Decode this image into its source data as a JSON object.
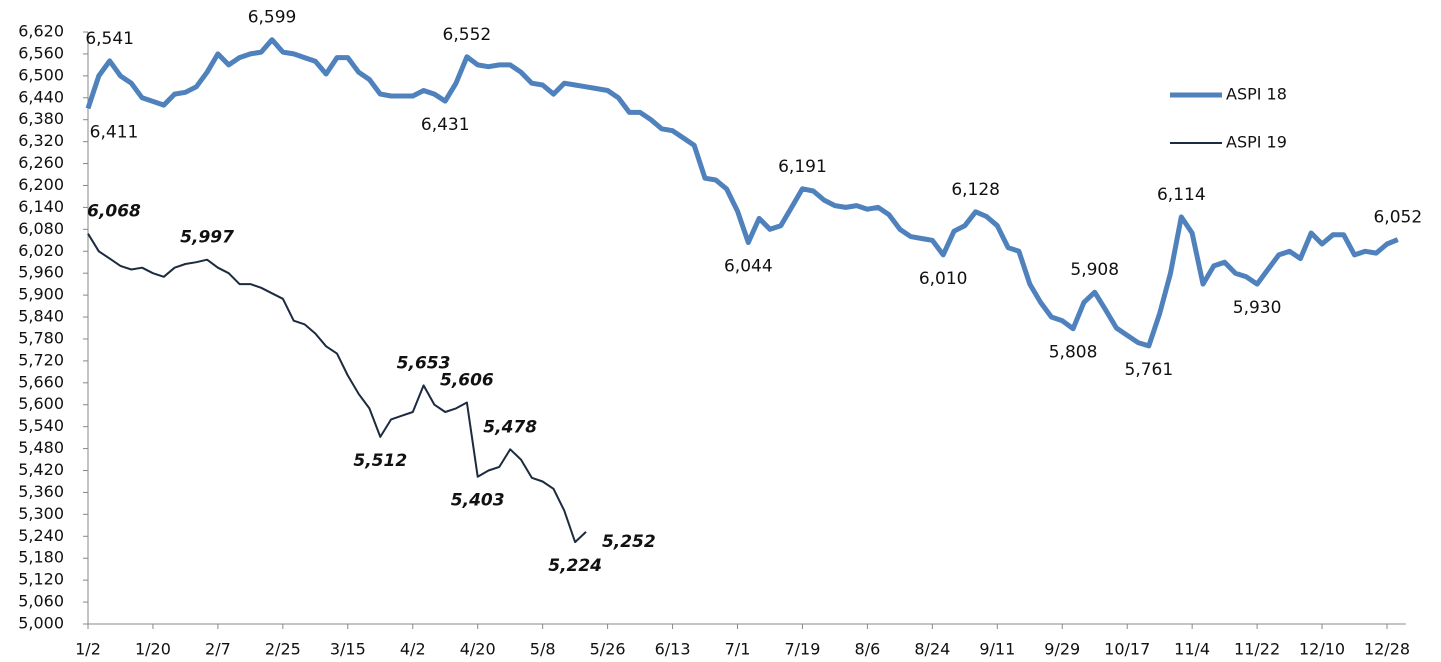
{
  "chart_data": {
    "type": "line",
    "categories": [
      "1/2",
      null,
      null,
      null,
      null,
      null,
      "1/20",
      null,
      null,
      null,
      null,
      null,
      "2/7",
      null,
      null,
      null,
      null,
      null,
      "2/25",
      null,
      null,
      null,
      null,
      null,
      "3/15",
      null,
      null,
      null,
      null,
      null,
      "4/2",
      null,
      null,
      null,
      null,
      null,
      "4/20",
      null,
      null,
      null,
      null,
      null,
      "5/8",
      null,
      null,
      null,
      null,
      null,
      "5/26",
      null,
      null,
      null,
      null,
      null,
      "6/13",
      null,
      null,
      null,
      null,
      null,
      "7/1",
      null,
      null,
      null,
      null,
      null,
      "7/19",
      null,
      null,
      null,
      null,
      null,
      "8/6",
      null,
      null,
      null,
      null,
      null,
      "8/24",
      null,
      null,
      null,
      null,
      null,
      "9/11",
      null,
      null,
      null,
      null,
      null,
      "9/29",
      null,
      null,
      null,
      null,
      null,
      "10/17",
      null,
      null,
      null,
      null,
      null,
      "11/4",
      null,
      null,
      null,
      null,
      null,
      "11/22",
      null,
      null,
      null,
      null,
      null,
      "12/10",
      null,
      null,
      null,
      null,
      null,
      "12/28",
      null
    ],
    "series": [
      {
        "name": "ASPI 18",
        "color": "#4f81bd",
        "width": 5,
        "values": [
          6411,
          6500,
          6541,
          6500,
          6480,
          6440,
          6430,
          6420,
          6450,
          6455,
          6470,
          6510,
          6560,
          6530,
          6550,
          6560,
          6565,
          6599,
          6565,
          6560,
          6550,
          6540,
          6505,
          6550,
          6550,
          6510,
          6490,
          6450,
          6445,
          6445,
          6445,
          6460,
          6450,
          6431,
          6480,
          6552,
          6530,
          6525,
          6530,
          6530,
          6510,
          6480,
          6475,
          6450,
          6480,
          6475,
          6470,
          6465,
          6460,
          6440,
          6400,
          6400,
          6380,
          6355,
          6350,
          6330,
          6310,
          6220,
          6215,
          6190,
          6130,
          6044,
          6110,
          6080,
          6090,
          6140,
          6191,
          6185,
          6160,
          6145,
          6140,
          6145,
          6135,
          6140,
          6120,
          6080,
          6060,
          6055,
          6050,
          6010,
          6075,
          6090,
          6128,
          6115,
          6090,
          6030,
          6020,
          5930,
          5880,
          5840,
          5830,
          5808,
          5880,
          5908,
          5860,
          5810,
          5790,
          5770,
          5761,
          5850,
          5960,
          6114,
          6070,
          5930,
          5980,
          5990,
          5960,
          5950,
          5930,
          5970,
          6010,
          6020,
          6000,
          6070,
          6040,
          6065,
          6065,
          6010,
          6020,
          6015,
          6040,
          6052
        ],
        "value_labels": [
          "6,411",
          null,
          "6,541",
          null,
          null,
          null,
          null,
          null,
          null,
          null,
          null,
          null,
          null,
          null,
          null,
          null,
          null,
          "6,599",
          null,
          null,
          null,
          null,
          null,
          null,
          null,
          null,
          null,
          null,
          null,
          null,
          null,
          null,
          null,
          "6,431",
          null,
          "6,552",
          null,
          null,
          null,
          null,
          null,
          null,
          null,
          null,
          null,
          null,
          null,
          null,
          null,
          null,
          null,
          null,
          null,
          null,
          null,
          null,
          null,
          null,
          null,
          null,
          null,
          "6,044",
          null,
          null,
          null,
          null,
          "6,191",
          null,
          null,
          null,
          null,
          null,
          null,
          null,
          null,
          null,
          null,
          null,
          null,
          "6,010",
          null,
          null,
          "6,128",
          null,
          null,
          null,
          null,
          null,
          null,
          null,
          null,
          "5,808",
          null,
          "5,908",
          null,
          null,
          null,
          null,
          "5,761",
          null,
          null,
          "6,114",
          null,
          null,
          null,
          null,
          null,
          null,
          "5,930",
          null,
          null,
          null,
          null,
          null,
          null,
          null,
          null,
          null,
          null,
          null,
          null,
          "6,052"
        ]
      },
      {
        "name": "ASPI 19",
        "color": "#1c2b3f",
        "width": 2,
        "label_style": "bold-italic",
        "values": [
          6068,
          6020,
          6000,
          5980,
          5970,
          5975,
          5960,
          5950,
          5975,
          5985,
          5990,
          5997,
          5975,
          5960,
          5930,
          5930,
          5920,
          5905,
          5890,
          5830,
          5820,
          5795,
          5760,
          5740,
          5680,
          5630,
          5590,
          5512,
          5560,
          5570,
          5580,
          5653,
          5600,
          5580,
          5590,
          5606,
          5403,
          5420,
          5430,
          5478,
          5450,
          5400,
          5390,
          5370,
          5310,
          5224,
          5252,
          null,
          null,
          null,
          null,
          null,
          null,
          null,
          null,
          null,
          null,
          null,
          null,
          null,
          null,
          null,
          null,
          null,
          null,
          null,
          null,
          null,
          null,
          null,
          null,
          null,
          null,
          null,
          null,
          null,
          null,
          null,
          null,
          null,
          null,
          null,
          null,
          null,
          null,
          null,
          null,
          null,
          null,
          null,
          null,
          null,
          null,
          null,
          null,
          null,
          null,
          null,
          null,
          null,
          null,
          null,
          null,
          null,
          null,
          null,
          null,
          null,
          null,
          null,
          null,
          null,
          null,
          null,
          null,
          null,
          null,
          null,
          null,
          null,
          null,
          null
        ],
        "value_labels": [
          "6,068",
          null,
          null,
          null,
          null,
          null,
          null,
          null,
          null,
          null,
          null,
          "5,997",
          null,
          null,
          null,
          null,
          null,
          null,
          null,
          null,
          null,
          null,
          null,
          null,
          null,
          null,
          null,
          "5,512",
          null,
          null,
          null,
          "5,653",
          null,
          null,
          null,
          "5,606",
          "5,403",
          null,
          null,
          "5,478",
          null,
          null,
          null,
          null,
          null,
          "5,224",
          "5,252",
          null,
          null,
          null,
          null,
          null,
          null,
          null,
          null,
          null,
          null,
          null,
          null,
          null,
          null,
          null,
          null,
          null,
          null,
          null,
          null,
          null,
          null,
          null,
          null,
          null,
          null,
          null,
          null,
          null,
          null,
          null,
          null,
          null,
          null,
          null,
          null,
          null,
          null,
          null,
          null,
          null,
          null,
          null,
          null,
          null,
          null,
          null,
          null,
          null,
          null,
          null,
          null,
          null,
          null,
          null,
          null,
          null,
          null,
          null,
          null,
          null,
          null,
          null,
          null,
          null,
          null,
          null,
          null,
          null,
          null,
          null,
          null,
          null,
          null,
          null
        ]
      }
    ],
    "ylim": [
      5000,
      6620
    ],
    "yticks": [
      {
        "value": 5000,
        "label": "5,000"
      },
      {
        "value": 5060,
        "label": "5,060"
      },
      {
        "value": 5120,
        "label": "5,120"
      },
      {
        "value": 5180,
        "label": "5,180"
      },
      {
        "value": 5240,
        "label": "5,240"
      },
      {
        "value": 5300,
        "label": "5,300"
      },
      {
        "value": 5360,
        "label": "5,360"
      },
      {
        "value": 5420,
        "label": "5,420"
      },
      {
        "value": 5480,
        "label": "5,480"
      },
      {
        "value": 5540,
        "label": "5,540"
      },
      {
        "value": 5600,
        "label": "5,600"
      },
      {
        "value": 5660,
        "label": "5,660"
      },
      {
        "value": 5720,
        "label": "5,720"
      },
      {
        "value": 5780,
        "label": "5,780"
      },
      {
        "value": 5840,
        "label": "5,840"
      },
      {
        "value": 5900,
        "label": "5,900"
      },
      {
        "value": 5960,
        "label": "5,960"
      },
      {
        "value": 6020,
        "label": "6,020"
      },
      {
        "value": 6080,
        "label": "6,080"
      },
      {
        "value": 6140,
        "label": "6,140"
      },
      {
        "value": 6200,
        "label": "6,200"
      },
      {
        "value": 6260,
        "label": "6,260"
      },
      {
        "value": 6320,
        "label": "6,320"
      },
      {
        "value": 6380,
        "label": "6,380"
      },
      {
        "value": 6440,
        "label": "6,440"
      },
      {
        "value": 6500,
        "label": "6,500"
      },
      {
        "value": 6560,
        "label": "6,560"
      },
      {
        "value": 6620,
        "label": "6,620"
      }
    ],
    "grid": false,
    "legend": "upper-right"
  }
}
